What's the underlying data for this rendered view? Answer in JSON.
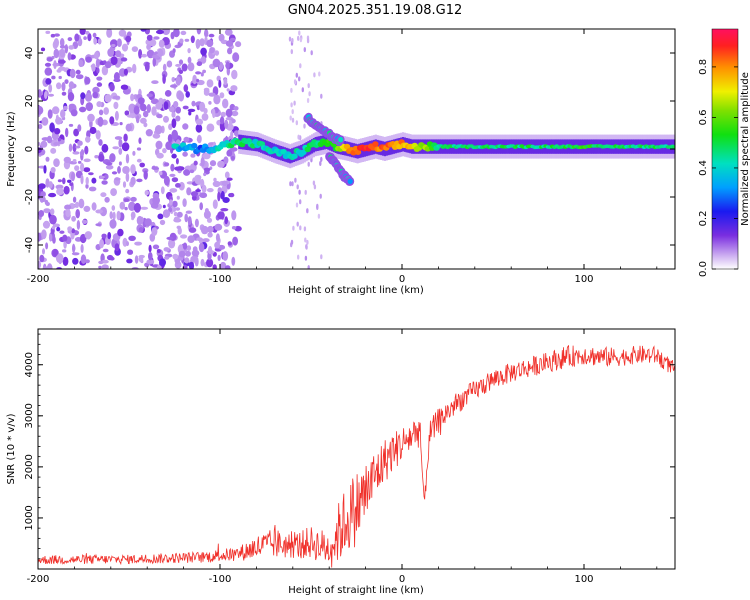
{
  "title": "GN04.2025.351.19.08.G12",
  "chart_data": [
    {
      "type": "heatmap",
      "xlabel": "Height of straight line (km)",
      "ylabel": "Frequency (Hz)",
      "xlim": [
        -200,
        150
      ],
      "ylim": [
        -50,
        50
      ],
      "x_ticks": [
        -200,
        -100,
        0,
        100
      ],
      "x_tick_labels": [
        "-200",
        "-100",
        "0",
        "100"
      ],
      "y_ticks": [
        -40,
        -20,
        0,
        20,
        40
      ],
      "y_tick_labels": [
        "-40",
        "-20",
        "0",
        "20",
        "40"
      ],
      "colorbar": {
        "label": "Normalized spectral amplitude",
        "range": [
          0,
          0.95
        ],
        "ticks": [
          0.0,
          0.2,
          0.4,
          0.6,
          0.8
        ],
        "tick_labels": [
          "0.0",
          "0.2",
          "0.4",
          "0.6",
          "0.8"
        ]
      },
      "noise_region_x": [
        -200,
        -90
      ],
      "ridge": {
        "x": [
          -125,
          -110,
          -100,
          -90,
          -80,
          -70,
          -62,
          -55,
          -48,
          -42,
          -36,
          -30,
          -25,
          -20,
          -15,
          -10,
          -5,
          0,
          5,
          10,
          20,
          40,
          60,
          80,
          100,
          120,
          150
        ],
        "y": [
          1,
          0,
          1,
          3,
          2,
          -1,
          -3,
          -1,
          2,
          3,
          1,
          0,
          -1,
          0,
          1,
          0,
          1,
          2,
          1,
          1,
          1,
          1,
          1,
          1,
          1,
          1,
          1
        ],
        "amplitude": [
          0.4,
          0.3,
          0.45,
          0.5,
          0.45,
          0.4,
          0.4,
          0.45,
          0.5,
          0.55,
          0.6,
          0.8,
          0.9,
          0.95,
          0.85,
          0.9,
          0.8,
          0.85,
          0.75,
          0.7,
          0.5,
          0.5,
          0.5,
          0.5,
          0.55,
          0.5,
          0.5
        ]
      },
      "branch_up": {
        "x": [
          -52,
          -45,
          -38,
          -33
        ],
        "y": [
          13,
          9,
          5,
          3
        ]
      },
      "branch_down": {
        "x": [
          -40,
          -36,
          -32,
          -28
        ],
        "y": [
          -3,
          -7,
          -11,
          -14
        ]
      }
    },
    {
      "type": "line",
      "xlabel": "Height of straight line (km)",
      "ylabel": "SNR (10 * v/v)",
      "xlim": [
        -200,
        150
      ],
      "ylim": [
        0,
        4700
      ],
      "x_ticks": [
        -200,
        -100,
        0,
        100
      ],
      "x_tick_labels": [
        "-200",
        "-100",
        "0",
        "100"
      ],
      "y_ticks": [
        1000,
        2000,
        3000,
        4000
      ],
      "y_tick_labels": [
        "1000",
        "2000",
        "3000",
        "4000"
      ],
      "color": "#f0302a",
      "series": [
        {
          "name": "SNR",
          "x": [
            -200,
            -150,
            -110,
            -90,
            -80,
            -70,
            -60,
            -50,
            -40,
            -35,
            -30,
            -25,
            -20,
            -15,
            -10,
            -5,
            0,
            5,
            10,
            12,
            15,
            20,
            30,
            40,
            50,
            60,
            70,
            80,
            90,
            100,
            110,
            120,
            130,
            140,
            150
          ],
          "mean": [
            180,
            190,
            230,
            300,
            420,
            500,
            450,
            520,
            400,
            700,
            1000,
            1200,
            1500,
            1800,
            2100,
            2300,
            2450,
            2600,
            2750,
            1200,
            2600,
            2900,
            3250,
            3500,
            3700,
            3850,
            3950,
            4050,
            4150,
            4200,
            4150,
            4150,
            4200,
            4180,
            3900
          ],
          "noise": [
            90,
            90,
            110,
            140,
            250,
            300,
            250,
            320,
            350,
            600,
            700,
            750,
            650,
            550,
            450,
            400,
            350,
            350,
            350,
            200,
            300,
            250,
            220,
            200,
            200,
            200,
            200,
            200,
            220,
            200,
            200,
            180,
            180,
            180,
            150
          ]
        }
      ]
    }
  ]
}
